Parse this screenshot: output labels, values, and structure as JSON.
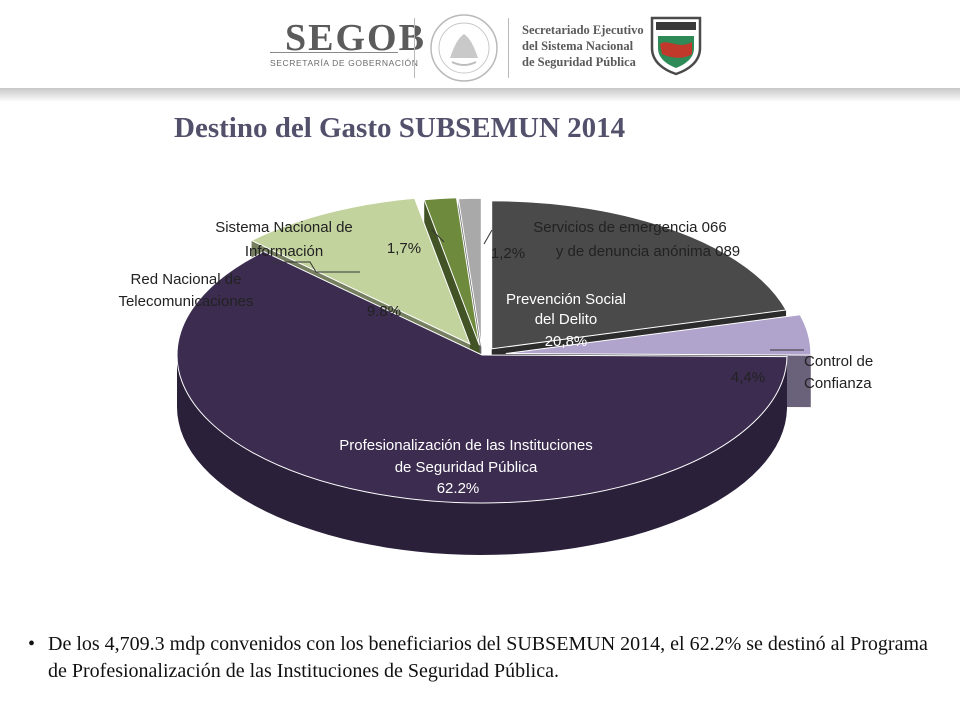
{
  "header": {
    "brand": "SEGOB",
    "brand_subtitle": "SECRETARÍA DE GOBERNACIÓN",
    "secretariado_lines": [
      "Secretariado Ejecutivo",
      "del Sistema Nacional",
      "de Seguridad Pública"
    ]
  },
  "title": "Destino del Gasto SUBSEMUN 2014",
  "chart_data": {
    "type": "pie",
    "title": "Destino del Gasto SUBSEMUN 2014",
    "slices": [
      {
        "name": "Prevención Social del Delito",
        "label_lines": [
          "Prevención Social",
          "del Delito"
        ],
        "value_label": "20,8%",
        "value": 20.8,
        "color": "#4a4a4a"
      },
      {
        "name": "Control de Confianza",
        "label_lines": [
          "Control de",
          "Confianza"
        ],
        "value_label": "4,4%",
        "value": 4.4,
        "color": "#b0a3cc"
      },
      {
        "name": "Profesionalización de las Instituciones de Seguridad Pública",
        "label_lines": [
          "Profesionalización de las Instituciones",
          "de  Seguridad Pública"
        ],
        "value_label": "62.2%",
        "value": 62.2,
        "color": "#3b2c50"
      },
      {
        "name": "Red Nacional de Telecomunicaciones",
        "label_lines": [
          "Red Nacional de",
          "Telecomunicaciones"
        ],
        "value_label": "9.8%",
        "value": 9.8,
        "color": "#c3d39e"
      },
      {
        "name": "Sistema Nacional de Información",
        "label_lines": [
          "Sistema Nacional de",
          "Información"
        ],
        "value_label": "1,7%",
        "value": 1.7,
        "color": "#6e8b3d"
      },
      {
        "name": "Servicios de emergencia 066 y de denuncia anónima 089",
        "label_lines": [
          "Servicios de emergencia 066",
          "y de denuncia anónima 089"
        ],
        "value_label": "1,2%",
        "value": 1.2,
        "color": "#a9a9a9"
      }
    ]
  },
  "note": "De los 4,709.3 mdp convenidos con los beneficiarios del SUBSEMUN 2014, el 62.2% se destinó al Programa de Profesionalización de las Instituciones de Seguridad Pública."
}
